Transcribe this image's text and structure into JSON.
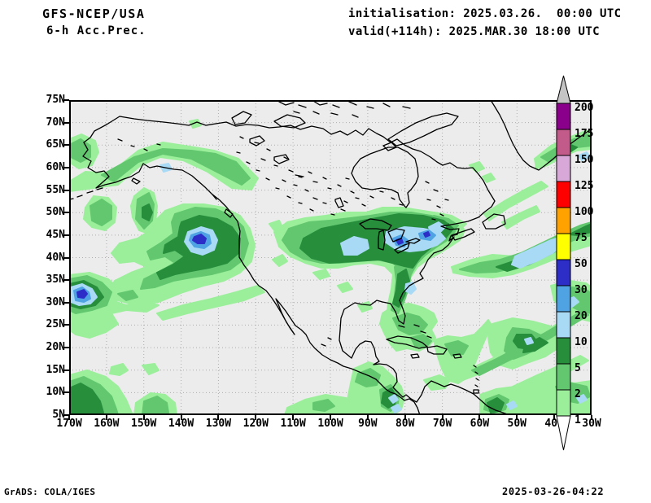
{
  "header": {
    "model": "GFS-NCEP/USA",
    "product": "6-h Acc.Prec.",
    "init_line": "initialisation: 2025.03.26.  00:00 UTC",
    "valid_line": "valid(+114h): 2025.MAR.30 18:00 UTC"
  },
  "footer": {
    "credit": "GrADS: COLA/IGES",
    "timestamp": "2025-03-26-04:22"
  },
  "map": {
    "lat_labels": [
      "75N",
      "70N",
      "65N",
      "60N",
      "55N",
      "50N",
      "45N",
      "40N",
      "35N",
      "30N",
      "25N",
      "20N",
      "15N",
      "10N",
      "5N"
    ],
    "lon_labels": [
      "170W",
      "160W",
      "150W",
      "140W",
      "130W",
      "120W",
      "110W",
      "100W",
      "90W",
      "80W",
      "70W",
      "60W",
      "50W",
      "40W",
      "30W"
    ]
  },
  "colorbar": {
    "levels": [
      "200",
      "175",
      "150",
      "125",
      "100",
      "75",
      "50",
      "30",
      "20",
      "10",
      "5",
      "2",
      "1"
    ],
    "segment_colors": [
      "#8B008B",
      "#C25B8A",
      "#D8A9D8",
      "#FF0000",
      "#FFA200",
      "#FFFF00",
      "#2D2DC8",
      "#4FA3E3",
      "#A8D9F5",
      "#278E3C",
      "#62C76F",
      "#9BEF9B"
    ],
    "overflow_arrow_color": "#C4C4C4",
    "underflow_arrow_color": "#FFFFFF"
  },
  "palette": {
    "map_background": "#ECECEC",
    "grid": "#ADADAD",
    "coast": "#000000",
    "p1": "#9BEF9B",
    "p2": "#62C76F",
    "p3": "#278E3C",
    "p4": "#A8D9F5",
    "p5": "#4FA3E3",
    "p6": "#2D2DC8"
  }
}
